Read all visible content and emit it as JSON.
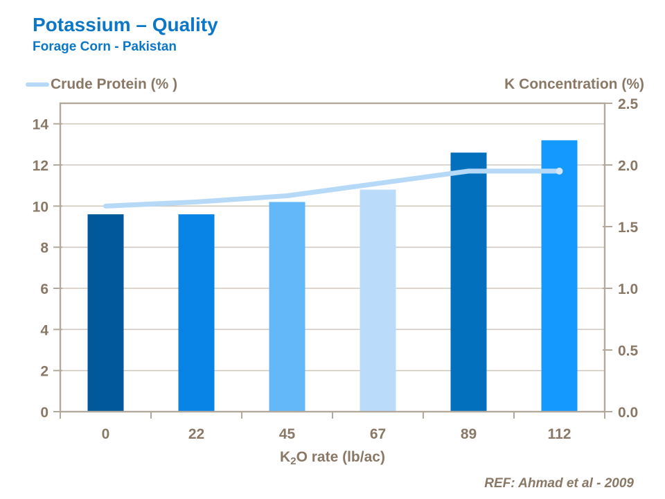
{
  "header": {
    "title": "Potassium – Quality",
    "subtitle": "Forage Corn - Pakistan",
    "title_color": "#0b77c6"
  },
  "legend": {
    "label": "Crude Protein (% )",
    "swatch_color": "#b7d9f8"
  },
  "axes": {
    "right_title": "K Concentration (%)",
    "x_title": {
      "prefix": "K",
      "sub": "2",
      "suffix": "O rate (lb/ac)"
    }
  },
  "footer": {
    "ref": "REF: Ahmad et al - 2009"
  },
  "chart_data": {
    "type": "bar",
    "title": "Potassium – Quality / Forage Corn - Pakistan",
    "xlabel": "K2O rate (lb/ac)",
    "categories": [
      "0",
      "22",
      "45",
      "67",
      "89",
      "112"
    ],
    "series": [
      {
        "name": "K Concentration (%)",
        "type": "bar",
        "axis": "right",
        "values": [
          1.6,
          1.6,
          1.7,
          1.8,
          2.1,
          2.2
        ],
        "bar_colors": [
          "#01589a",
          "#0883e6",
          "#63b8fa",
          "#badcfa",
          "#0270bd",
          "#149aff"
        ]
      },
      {
        "name": "Crude Protein (%)",
        "type": "line",
        "axis": "left",
        "values": [
          10.0,
          10.2,
          10.5,
          11.1,
          11.7,
          11.7
        ],
        "color": "#b7d9f8",
        "end_marker_color": "#d3e6fb"
      }
    ],
    "left_axis": {
      "min": 0,
      "max": 15,
      "ticks": [
        0,
        2,
        4,
        6,
        8,
        10,
        12,
        14
      ],
      "title": ""
    },
    "right_axis": {
      "min": 0,
      "max": 2.5,
      "ticks": [
        0.0,
        0.5,
        1.0,
        1.5,
        2.0,
        2.5
      ],
      "tick_format": "one-decimal",
      "title": "K Concentration (%)"
    },
    "grid": "horizontal at left-axis ticks",
    "legend_position": "top-left",
    "style": {
      "text_color": "#8a7866",
      "axis_line_color": "#b2a99c",
      "gridline_color": "#d1c9bf",
      "background": "#ffffff"
    }
  }
}
